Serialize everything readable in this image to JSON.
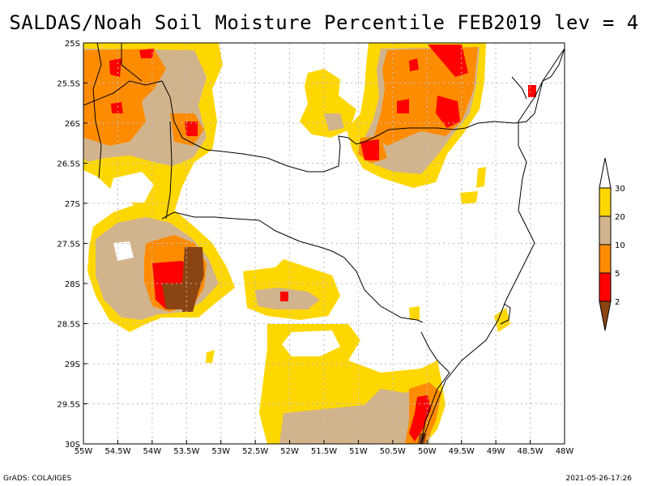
{
  "title": "SALDAS/Noah Soil Moisture Percentile FEB2019 lev = 4",
  "footer": {
    "left": "GrADS: COLA/IGES",
    "right": "2021-05-26-17:26"
  },
  "axes": {
    "x_ticks": [
      "55W",
      "54.5W",
      "54W",
      "53.5W",
      "53W",
      "52.5W",
      "52W",
      "51.5W",
      "51W",
      "50.5W",
      "50W",
      "49.5W",
      "49W",
      "48.5W",
      "48W"
    ],
    "y_ticks": [
      "25S",
      "25.5S",
      "26S",
      "26.5S",
      "27S",
      "27.5S",
      "28S",
      "28.5S",
      "29S",
      "29.5S",
      "30S"
    ],
    "x_range": [
      -55,
      -48
    ],
    "y_range": [
      -30,
      -25
    ]
  },
  "legend": {
    "labels": [
      "2",
      "5",
      "10",
      "20",
      "30"
    ],
    "colors": {
      "below_2": "#8b4513",
      "2_to_5": "#ff0000",
      "5_to_10": "#ff8c00",
      "10_to_20": "#d2b48c",
      "20_to_30": "#ffd700",
      "above_30": "#ffffff"
    }
  },
  "colors": {
    "dark_brown": "#8b4513",
    "red": "#ff0000",
    "orange": "#ff8c00",
    "tan": "#d2b48c",
    "gold": "#ffd700"
  }
}
